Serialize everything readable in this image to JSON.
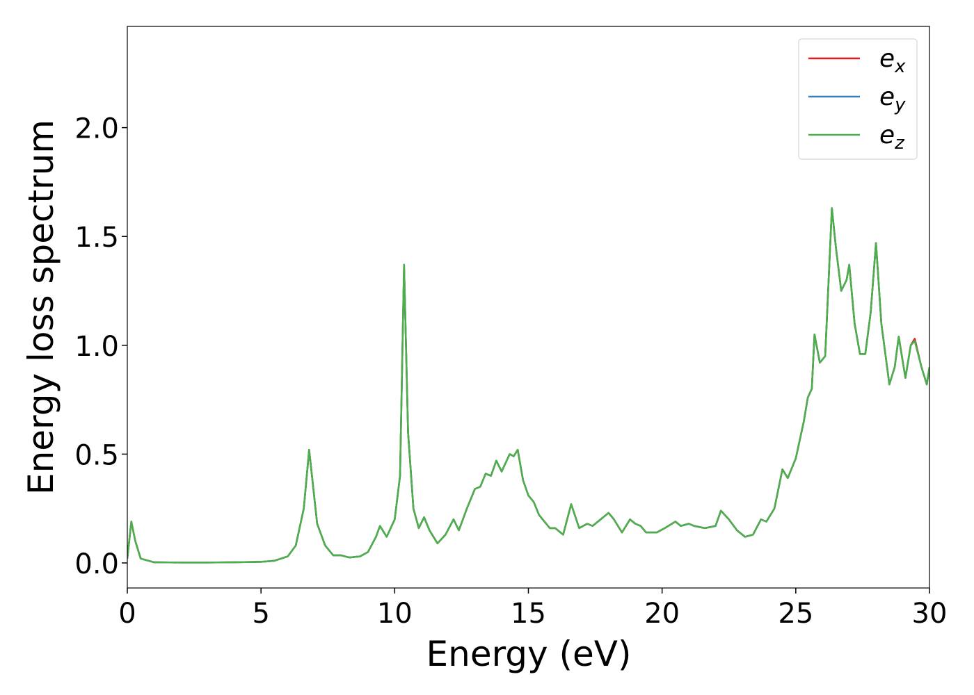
{
  "chart_data": {
    "type": "line",
    "xlabel": "Energy (eV)",
    "ylabel": "Energy loss spectrum",
    "xlim": [
      0,
      30
    ],
    "xticks": [
      0,
      5,
      10,
      15,
      20,
      25,
      30
    ],
    "ylim": [
      -0.115,
      2.465
    ],
    "yticks": [
      {
        "value": 0,
        "label": "0.0"
      },
      0.5,
      {
        "value": 1,
        "label": "1.0"
      },
      1.5,
      {
        "value": 2,
        "label": "2.0"
      }
    ],
    "legend": "upper right",
    "x": [
      0,
      0.15,
      0.3,
      0.5,
      1,
      2,
      3,
      4,
      5,
      5.5,
      6,
      6.3,
      6.6,
      6.8,
      6.95,
      7.1,
      7.4,
      7.7,
      8,
      8.3,
      8.7,
      9,
      9.3,
      9.45,
      9.7,
      10,
      10.2,
      10.35,
      10.5,
      10.7,
      10.9,
      11.1,
      11.3,
      11.6,
      11.9,
      12.2,
      12.4,
      12.7,
      13,
      13.2,
      13.4,
      13.6,
      13.8,
      14,
      14.3,
      14.45,
      14.6,
      14.8,
      15,
      15.2,
      15.4,
      15.8,
      16,
      16.3,
      16.6,
      16.9,
      17.2,
      17.4,
      17.7,
      18,
      18.2,
      18.5,
      18.8,
      19,
      19.2,
      19.4,
      19.8,
      20.1,
      20.5,
      20.7,
      21,
      21.2,
      21.6,
      22,
      22.2,
      22.5,
      22.8,
      23.1,
      23.4,
      23.7,
      23.9,
      24.2,
      24.5,
      24.7,
      25,
      25.3,
      25.45,
      25.6,
      25.7,
      25.9,
      26.1,
      26.35,
      26.5,
      26.7,
      26.9,
      27,
      27.2,
      27.4,
      27.6,
      27.8,
      28,
      28.2,
      28.5,
      28.7,
      28.85,
      29.1,
      29.3,
      29.45,
      29.7,
      29.9,
      30
    ],
    "series": [
      {
        "name": "ex",
        "color": "#e41a1c",
        "values": [
          0.02,
          0.19,
          0.1,
          0.02,
          0.003,
          0.002,
          0.002,
          0.003,
          0.005,
          0.01,
          0.03,
          0.08,
          0.25,
          0.52,
          0.35,
          0.18,
          0.08,
          0.035,
          0.035,
          0.025,
          0.03,
          0.05,
          0.12,
          0.17,
          0.12,
          0.2,
          0.4,
          1.37,
          0.6,
          0.25,
          0.16,
          0.21,
          0.15,
          0.09,
          0.13,
          0.2,
          0.15,
          0.25,
          0.34,
          0.35,
          0.41,
          0.4,
          0.47,
          0.42,
          0.5,
          0.49,
          0.52,
          0.38,
          0.31,
          0.28,
          0.22,
          0.16,
          0.16,
          0.13,
          0.27,
          0.16,
          0.18,
          0.17,
          0.2,
          0.23,
          0.2,
          0.14,
          0.2,
          0.18,
          0.17,
          0.14,
          0.14,
          0.16,
          0.19,
          0.17,
          0.18,
          0.17,
          0.16,
          0.17,
          0.24,
          0.2,
          0.15,
          0.12,
          0.13,
          0.2,
          0.19,
          0.25,
          0.43,
          0.39,
          0.48,
          0.65,
          0.76,
          0.8,
          1.05,
          0.92,
          0.95,
          1.63,
          1.45,
          1.25,
          1.3,
          1.37,
          1.1,
          0.96,
          0.96,
          1.15,
          1.47,
          1.1,
          0.82,
          0.9,
          1.04,
          0.85,
          1.0,
          1.03,
          0.9,
          0.82,
          0.9
        ]
      },
      {
        "name": "ey",
        "color": "#377eb8",
        "values": [
          0.02,
          0.19,
          0.1,
          0.02,
          0.003,
          0.002,
          0.002,
          0.003,
          0.005,
          0.01,
          0.03,
          0.08,
          0.25,
          0.52,
          0.35,
          0.18,
          0.08,
          0.035,
          0.035,
          0.025,
          0.03,
          0.05,
          0.12,
          0.17,
          0.12,
          0.2,
          0.4,
          1.37,
          0.6,
          0.25,
          0.16,
          0.21,
          0.15,
          0.09,
          0.13,
          0.2,
          0.15,
          0.25,
          0.34,
          0.35,
          0.41,
          0.4,
          0.47,
          0.42,
          0.5,
          0.49,
          0.52,
          0.38,
          0.31,
          0.28,
          0.22,
          0.16,
          0.16,
          0.13,
          0.27,
          0.16,
          0.18,
          0.17,
          0.2,
          0.23,
          0.2,
          0.14,
          0.2,
          0.18,
          0.17,
          0.14,
          0.14,
          0.16,
          0.19,
          0.17,
          0.18,
          0.17,
          0.16,
          0.17,
          0.24,
          0.2,
          0.15,
          0.12,
          0.13,
          0.2,
          0.19,
          0.25,
          0.43,
          0.39,
          0.48,
          0.65,
          0.76,
          0.8,
          1.05,
          0.92,
          0.95,
          1.63,
          1.45,
          1.25,
          1.3,
          1.37,
          1.1,
          0.96,
          0.96,
          1.15,
          1.47,
          1.1,
          0.82,
          0.9,
          1.04,
          0.85,
          1.0,
          1.02,
          0.9,
          0.82,
          0.9
        ]
      },
      {
        "name": "ez",
        "color": "#4daf4a",
        "values": [
          0.02,
          0.19,
          0.1,
          0.02,
          0.003,
          0.002,
          0.002,
          0.003,
          0.005,
          0.01,
          0.03,
          0.08,
          0.25,
          0.52,
          0.35,
          0.18,
          0.08,
          0.035,
          0.035,
          0.025,
          0.03,
          0.05,
          0.12,
          0.17,
          0.12,
          0.2,
          0.4,
          1.37,
          0.6,
          0.25,
          0.16,
          0.21,
          0.15,
          0.09,
          0.13,
          0.2,
          0.15,
          0.25,
          0.34,
          0.35,
          0.41,
          0.4,
          0.47,
          0.42,
          0.5,
          0.49,
          0.52,
          0.38,
          0.31,
          0.28,
          0.22,
          0.16,
          0.16,
          0.13,
          0.27,
          0.16,
          0.18,
          0.17,
          0.2,
          0.23,
          0.2,
          0.14,
          0.2,
          0.18,
          0.17,
          0.14,
          0.14,
          0.16,
          0.19,
          0.17,
          0.18,
          0.17,
          0.16,
          0.17,
          0.24,
          0.2,
          0.15,
          0.12,
          0.13,
          0.2,
          0.19,
          0.25,
          0.43,
          0.39,
          0.48,
          0.65,
          0.76,
          0.8,
          1.05,
          0.92,
          0.95,
          1.63,
          1.45,
          1.25,
          1.3,
          1.37,
          1.1,
          0.96,
          0.96,
          1.15,
          1.47,
          1.1,
          0.82,
          0.9,
          1.04,
          0.85,
          1.0,
          1.02,
          0.9,
          0.82,
          0.9
        ]
      }
    ]
  }
}
